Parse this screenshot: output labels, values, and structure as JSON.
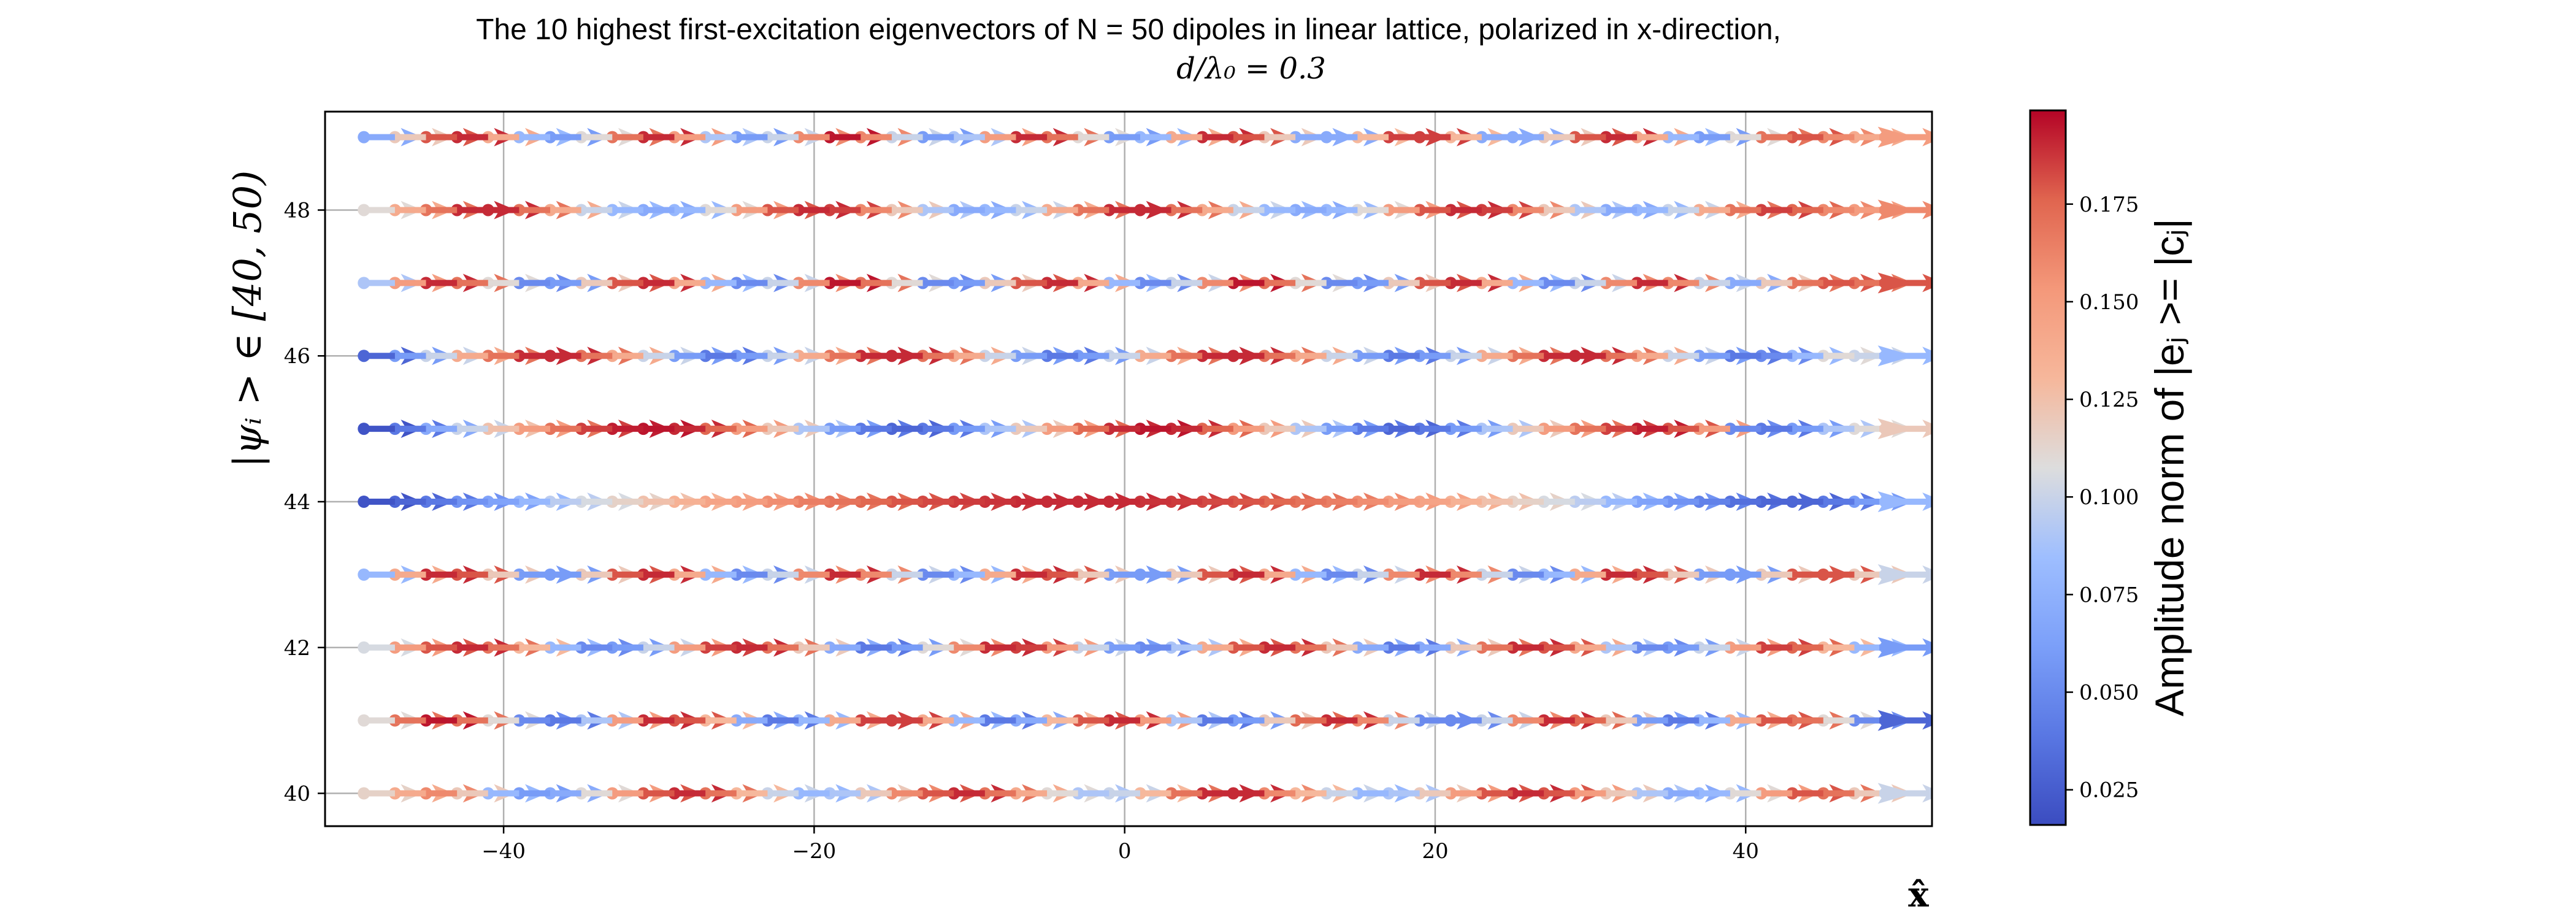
{
  "chart_data": {
    "type": "quiver",
    "title_line1": "The 10 highest first-excitation eigenvectors of N = 50 dipoles in linear lattice, polarized in x-direction,",
    "title_line2": "d/λ₀ = 0.3",
    "xlabel": "x̂",
    "ylabel": "|ψᵢ > ∈ [40, 50)",
    "xlim": [
      -51.5,
      52
    ],
    "ylim": [
      39.55,
      49.35
    ],
    "xticks": [
      "−40",
      "−20",
      "0",
      "20",
      "40"
    ],
    "xtick_values": [
      -40,
      -20,
      0,
      20,
      40
    ],
    "yticks": [
      "40",
      "42",
      "44",
      "46",
      "48"
    ],
    "ytick_values": [
      40,
      42,
      44,
      46,
      48
    ],
    "grid": true,
    "colormap": "coolwarm",
    "colors": {
      "low": "#3b4cc0",
      "mid": "#dddddd",
      "high": "#b40426"
    },
    "colorbar": {
      "label": "Amplitude norm of |eⱼ >= |cⱼ|",
      "range": [
        0.016,
        0.199
      ],
      "ticks": [
        "0.025",
        "0.050",
        "0.075",
        "0.100",
        "0.125",
        "0.150",
        "0.175"
      ],
      "tick_values": [
        0.025,
        0.05,
        0.075,
        0.1,
        0.125,
        0.15,
        0.175
      ]
    },
    "x_positions_range": [
      -49,
      49
    ],
    "dipoles_per_row": 50,
    "rows": [
      {
        "y": 40,
        "final_arrow_amplitude": 0.1,
        "amplitudes": [
          0.115,
          0.14,
          0.16,
          0.12,
          0.08,
          0.06,
          0.07,
          0.11,
          0.15,
          0.18,
          0.19,
          0.17,
          0.13,
          0.1,
          0.08,
          0.09,
          0.12,
          0.16,
          0.18,
          0.19,
          0.17,
          0.14,
          0.11,
          0.09,
          0.1,
          0.13,
          0.17,
          0.19,
          0.19,
          0.16,
          0.13,
          0.1,
          0.08,
          0.09,
          0.12,
          0.15,
          0.18,
          0.19,
          0.18,
          0.15,
          0.12,
          0.09,
          0.07,
          0.08,
          0.11,
          0.15,
          0.18,
          0.17,
          0.12,
          0.1
        ]
      },
      {
        "y": 41,
        "final_arrow_amplitude": 0.03,
        "amplitudes": [
          0.11,
          0.17,
          0.195,
          0.17,
          0.11,
          0.05,
          0.04,
          0.09,
          0.15,
          0.19,
          0.18,
          0.13,
          0.07,
          0.04,
          0.08,
          0.14,
          0.185,
          0.185,
          0.14,
          0.08,
          0.04,
          0.07,
          0.13,
          0.18,
          0.19,
          0.15,
          0.09,
          0.04,
          0.06,
          0.12,
          0.175,
          0.19,
          0.16,
          0.1,
          0.05,
          0.05,
          0.1,
          0.16,
          0.19,
          0.175,
          0.12,
          0.06,
          0.04,
          0.08,
          0.14,
          0.18,
          0.17,
          0.11,
          0.05,
          0.03
        ]
      },
      {
        "y": 42,
        "final_arrow_amplitude": 0.06,
        "amplitudes": [
          0.105,
          0.15,
          0.18,
          0.19,
          0.17,
          0.13,
          0.08,
          0.05,
          0.06,
          0.1,
          0.15,
          0.185,
          0.19,
          0.17,
          0.12,
          0.07,
          0.04,
          0.06,
          0.11,
          0.16,
          0.19,
          0.185,
          0.15,
          0.1,
          0.06,
          0.05,
          0.09,
          0.14,
          0.18,
          0.19,
          0.17,
          0.12,
          0.07,
          0.04,
          0.07,
          0.12,
          0.17,
          0.19,
          0.18,
          0.14,
          0.09,
          0.05,
          0.06,
          0.1,
          0.15,
          0.185,
          0.175,
          0.13,
          0.08,
          0.06
        ]
      },
      {
        "y": 43,
        "final_arrow_amplitude": 0.1,
        "amplitudes": [
          0.08,
          0.14,
          0.19,
          0.18,
          0.12,
          0.06,
          0.06,
          0.12,
          0.18,
          0.19,
          0.14,
          0.08,
          0.05,
          0.1,
          0.16,
          0.19,
          0.16,
          0.1,
          0.05,
          0.08,
          0.14,
          0.19,
          0.18,
          0.12,
          0.06,
          0.06,
          0.12,
          0.18,
          0.19,
          0.14,
          0.08,
          0.05,
          0.1,
          0.16,
          0.19,
          0.16,
          0.1,
          0.05,
          0.08,
          0.14,
          0.19,
          0.18,
          0.12,
          0.06,
          0.06,
          0.12,
          0.18,
          0.18,
          0.12,
          0.1
        ]
      },
      {
        "y": 44,
        "final_arrow_amplitude": 0.08,
        "amplitudes": [
          0.02,
          0.03,
          0.04,
          0.055,
          0.065,
          0.08,
          0.095,
          0.105,
          0.115,
          0.125,
          0.135,
          0.145,
          0.15,
          0.158,
          0.165,
          0.17,
          0.175,
          0.18,
          0.183,
          0.186,
          0.188,
          0.19,
          0.19,
          0.19,
          0.19,
          0.188,
          0.186,
          0.183,
          0.18,
          0.175,
          0.17,
          0.165,
          0.158,
          0.15,
          0.145,
          0.135,
          0.125,
          0.115,
          0.105,
          0.095,
          0.08,
          0.065,
          0.055,
          0.045,
          0.035,
          0.03,
          0.03,
          0.04,
          0.06,
          0.08
        ]
      },
      {
        "y": 45,
        "final_arrow_amplitude": 0.12,
        "amplitudes": [
          0.02,
          0.04,
          0.07,
          0.1,
          0.125,
          0.15,
          0.17,
          0.185,
          0.193,
          0.195,
          0.19,
          0.175,
          0.15,
          0.12,
          0.09,
          0.06,
          0.04,
          0.03,
          0.04,
          0.06,
          0.09,
          0.12,
          0.15,
          0.175,
          0.19,
          0.195,
          0.19,
          0.175,
          0.15,
          0.12,
          0.09,
          0.06,
          0.04,
          0.03,
          0.04,
          0.06,
          0.09,
          0.12,
          0.15,
          0.17,
          0.185,
          0.193,
          0.18,
          0.15,
          0.05,
          0.04,
          0.06,
          0.09,
          0.11,
          0.12
        ]
      },
      {
        "y": 46,
        "final_arrow_amplitude": 0.08,
        "amplitudes": [
          0.03,
          0.06,
          0.1,
          0.14,
          0.17,
          0.19,
          0.19,
          0.17,
          0.14,
          0.1,
          0.06,
          0.04,
          0.06,
          0.1,
          0.14,
          0.17,
          0.19,
          0.19,
          0.17,
          0.14,
          0.1,
          0.06,
          0.04,
          0.06,
          0.1,
          0.14,
          0.17,
          0.19,
          0.19,
          0.17,
          0.14,
          0.1,
          0.06,
          0.04,
          0.06,
          0.1,
          0.14,
          0.17,
          0.19,
          0.19,
          0.17,
          0.14,
          0.1,
          0.06,
          0.04,
          0.05,
          0.08,
          0.11,
          0.1,
          0.08
        ]
      },
      {
        "y": 47,
        "final_arrow_amplitude": 0.18,
        "amplitudes": [
          0.09,
          0.15,
          0.19,
          0.17,
          0.11,
          0.05,
          0.06,
          0.12,
          0.18,
          0.19,
          0.14,
          0.08,
          0.05,
          0.1,
          0.16,
          0.195,
          0.17,
          0.11,
          0.05,
          0.06,
          0.12,
          0.18,
          0.19,
          0.14,
          0.08,
          0.05,
          0.1,
          0.16,
          0.195,
          0.17,
          0.11,
          0.05,
          0.06,
          0.12,
          0.18,
          0.19,
          0.14,
          0.08,
          0.05,
          0.1,
          0.16,
          0.19,
          0.16,
          0.1,
          0.07,
          0.12,
          0.17,
          0.18,
          0.17,
          0.18
        ]
      },
      {
        "y": 48,
        "final_arrow_amplitude": 0.16,
        "amplitudes": [
          0.11,
          0.14,
          0.17,
          0.19,
          0.19,
          0.17,
          0.14,
          0.1,
          0.08,
          0.07,
          0.08,
          0.11,
          0.15,
          0.18,
          0.19,
          0.185,
          0.16,
          0.12,
          0.09,
          0.07,
          0.08,
          0.1,
          0.14,
          0.17,
          0.19,
          0.19,
          0.17,
          0.14,
          0.1,
          0.08,
          0.07,
          0.08,
          0.11,
          0.15,
          0.18,
          0.19,
          0.185,
          0.16,
          0.12,
          0.09,
          0.07,
          0.08,
          0.1,
          0.14,
          0.17,
          0.185,
          0.175,
          0.16,
          0.15,
          0.16
        ]
      },
      {
        "y": 49,
        "final_arrow_amplitude": 0.15,
        "amplitudes": [
          0.07,
          0.12,
          0.18,
          0.19,
          0.14,
          0.08,
          0.06,
          0.11,
          0.17,
          0.19,
          0.15,
          0.09,
          0.06,
          0.1,
          0.16,
          0.195,
          0.16,
          0.1,
          0.06,
          0.09,
          0.15,
          0.19,
          0.17,
          0.11,
          0.06,
          0.08,
          0.14,
          0.19,
          0.18,
          0.12,
          0.07,
          0.07,
          0.13,
          0.185,
          0.185,
          0.13,
          0.07,
          0.07,
          0.12,
          0.18,
          0.19,
          0.14,
          0.08,
          0.06,
          0.11,
          0.17,
          0.18,
          0.16,
          0.14,
          0.15
        ]
      }
    ]
  }
}
